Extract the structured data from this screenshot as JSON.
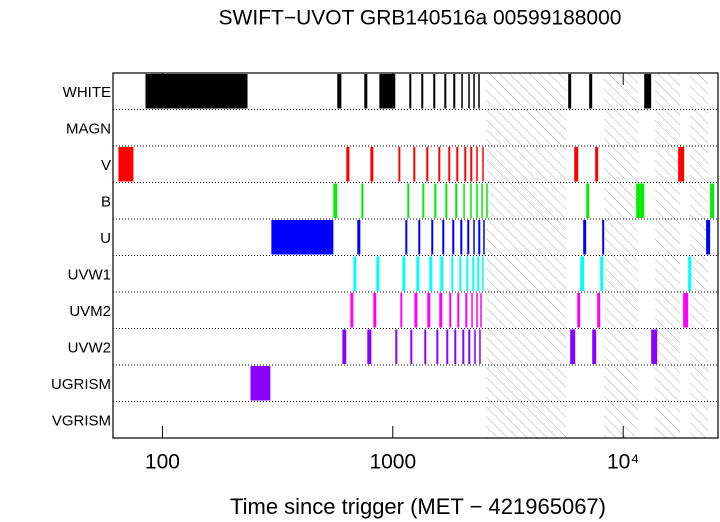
{
  "chart_data": {
    "type": "timeline",
    "title": "SWIFT−UVOT GRB140516a 00599188000",
    "xlabel": "Time since trigger (MET − 421965067)",
    "xscale": "log",
    "xlim": [
      61,
      25800
    ],
    "xticks": [
      100,
      1000,
      {
        "value": 10000,
        "label": "10⁴"
      }
    ],
    "gaps": [
      [
        2544,
        5657
      ],
      [
        8272,
        11620
      ],
      [
        13760,
        17680
      ],
      [
        19530,
        23380
      ]
    ],
    "series": [
      {
        "name": "WHITE",
        "color": "#000000",
        "values": [
          [
            84.4,
            234
          ],
          [
            574,
            598
          ],
          [
            752,
            775
          ],
          [
            874,
            1025
          ],
          [
            1179,
            1203
          ],
          [
            1329,
            1356
          ],
          [
            1498,
            1529
          ],
          [
            1673,
            1707
          ],
          [
            1830,
            1867
          ],
          [
            1983,
            2003
          ],
          [
            2126,
            2147
          ],
          [
            2235,
            2257
          ],
          [
            2349,
            2372
          ],
          [
            5771,
            5947
          ],
          [
            7119,
            7338
          ],
          [
            12340,
            13230
          ]
        ]
      },
      {
        "name": "MAGN",
        "color": "#000000",
        "values": []
      },
      {
        "name": "V",
        "color": "#ff0000",
        "values": [
          [
            64.4,
            74.8
          ],
          [
            628,
            648
          ],
          [
            799,
            823
          ],
          [
            1057,
            1078
          ],
          [
            1227,
            1252
          ],
          [
            1397,
            1426
          ],
          [
            1576,
            1607
          ],
          [
            1741,
            1776
          ],
          [
            1886,
            1924
          ],
          [
            2043,
            2084
          ],
          [
            2169,
            2213
          ],
          [
            2303,
            2326
          ],
          [
            2445,
            2469
          ],
          [
            6131,
            6381
          ],
          [
            7557,
            7789
          ],
          [
            17320,
            18390
          ]
        ]
      },
      {
        "name": "B",
        "color": "#00ee00",
        "values": [
          [
            552,
            574
          ],
          [
            730,
            745
          ],
          [
            1156,
            1179
          ],
          [
            1343,
            1370
          ],
          [
            1514,
            1545
          ],
          [
            1690,
            1724
          ],
          [
            1867,
            1905
          ],
          [
            2023,
            2043
          ],
          [
            2169,
            2191
          ],
          [
            2303,
            2326
          ],
          [
            2421,
            2445
          ],
          [
            2544,
            2570
          ],
          [
            6910,
            7119
          ],
          [
            11390,
            12340
          ],
          [
            23850,
            24830
          ]
        ]
      },
      {
        "name": "U",
        "color": "#0000ff",
        "values": [
          [
            297,
            552
          ],
          [
            701,
            723
          ],
          [
            1133,
            1156
          ],
          [
            1290,
            1316
          ],
          [
            1469,
            1498
          ],
          [
            1640,
            1673
          ],
          [
            1812,
            1849
          ],
          [
            1963,
            2003
          ],
          [
            2105,
            2147
          ],
          [
            2235,
            2257
          ],
          [
            2349,
            2397
          ],
          [
            2469,
            2495
          ],
          [
            6706,
            6910
          ],
          [
            8108,
            8272
          ],
          [
            22910,
            23850
          ]
        ]
      },
      {
        "name": "UVW1",
        "color": "#00ffff",
        "values": [
          [
            674,
            694
          ],
          [
            848,
            874
          ],
          [
            1100,
            1133
          ],
          [
            1265,
            1303
          ],
          [
            1440,
            1484
          ],
          [
            1607,
            1656
          ],
          [
            1794,
            1830
          ],
          [
            1944,
            1983
          ],
          [
            2084,
            2126
          ],
          [
            2213,
            2257
          ],
          [
            2326,
            2372
          ],
          [
            2445,
            2469
          ],
          [
            6509,
            6773
          ],
          [
            7948,
            8189
          ],
          [
            19140,
            19730
          ]
        ]
      },
      {
        "name": "UVM2",
        "color": "#ff00ff",
        "values": [
          [
            654,
            674
          ],
          [
            823,
            848
          ],
          [
            1078,
            1100
          ],
          [
            1240,
            1278
          ],
          [
            1411,
            1455
          ],
          [
            1591,
            1640
          ],
          [
            1758,
            1794
          ],
          [
            1905,
            1944
          ],
          [
            2063,
            2105
          ],
          [
            2191,
            2213
          ],
          [
            2303,
            2326
          ],
          [
            2397,
            2421
          ],
          [
            6318,
            6509
          ],
          [
            7714,
            7948
          ],
          [
            18210,
            19140
          ]
        ]
      },
      {
        "name": "UVW2",
        "color": "#8800ff",
        "values": [
          [
            604,
            628
          ],
          [
            775,
            807
          ],
          [
            1025,
            1046
          ],
          [
            1191,
            1215
          ],
          [
            1370,
            1397
          ],
          [
            1545,
            1576
          ],
          [
            1707,
            1741
          ],
          [
            1849,
            1886
          ],
          [
            2003,
            2043
          ],
          [
            2126,
            2169
          ],
          [
            2257,
            2280
          ],
          [
            2372,
            2397
          ],
          [
            5889,
            6193
          ],
          [
            7338,
            7637
          ],
          [
            13230,
            14050
          ]
        ]
      },
      {
        "name": "UGRISM",
        "color": "#8800ff",
        "values": [
          [
            241,
            294
          ]
        ]
      },
      {
        "name": "VGRISM",
        "color": "#8800ff",
        "values": []
      }
    ]
  }
}
